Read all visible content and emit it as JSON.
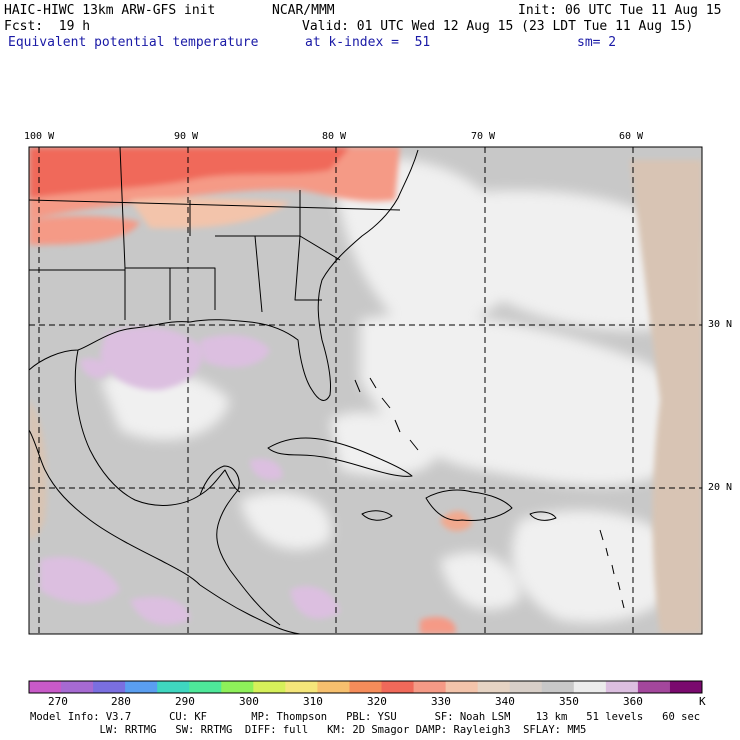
{
  "header": {
    "title": "HAIC-HIWC 13km ARW-GFS init",
    "org": "NCAR/MMM",
    "init": "Init: 06 UTC Tue 11 Aug 15",
    "fcst": "Fcst:  19 h",
    "valid": "Valid: 01 UTC Wed 12 Aug 15 (23 LDT Tue 11 Aug 15)",
    "field": "Equivalent potential temperature",
    "level": "at k-index =  51",
    "smoothing": "sm= 2"
  },
  "map": {
    "lon_labels": [
      "100 W",
      "90 W",
      "80 W",
      "70 W",
      "60 W"
    ],
    "lat_labels": [
      "30 N",
      "20 N"
    ],
    "colors": {
      "hot": "#f0695a",
      "warm": "#f59a86",
      "tan": "#e6c4a4",
      "gray": "#c8c8c8",
      "light": "#f0f0f0",
      "lavender": "#dcbfe0",
      "purple": "#a3479c",
      "coast": "#000000"
    }
  },
  "colorbar": {
    "tick_labels": [
      "270",
      "280",
      "290",
      "300",
      "310",
      "320",
      "330",
      "340",
      "350",
      "360"
    ],
    "unit": "K",
    "colors": [
      "#c85ac8",
      "#a66ad2",
      "#7a6fe0",
      "#5a9ef0",
      "#3fd6c0",
      "#4ee89a",
      "#8ef05a",
      "#d6f05a",
      "#f5e67a",
      "#f7c06e",
      "#f58c5a",
      "#f0695a",
      "#f59a86",
      "#f3c4ab",
      "#e6d4c4",
      "#d8cfc8",
      "#c8c8c8",
      "#ececec",
      "#dcbfe0",
      "#a3479c",
      "#7a0a6e"
    ]
  },
  "footer": {
    "line1": "Model Info: V3.7      CU: KF       MP: Thompson   PBL: YSU      SF: Noah LSM    13 km   51 levels   60 sec",
    "line2": "           LW: RRTMG   SW: RRTMG  DIFF: full   KM: 2D Smagor DAMP: Rayleigh3  SFLAY: MM5"
  }
}
